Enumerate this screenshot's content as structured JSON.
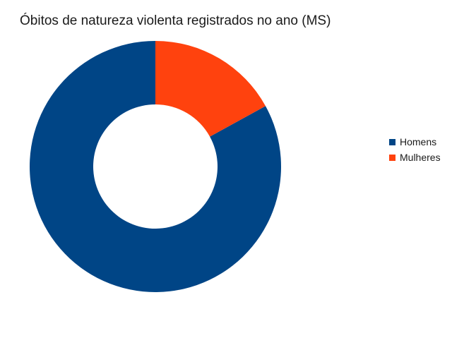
{
  "chart_data": {
    "type": "pie",
    "variant": "donut",
    "title": "Óbitos de natureza violenta registrados no ano (MS)",
    "categories": [
      "Homens",
      "Mulheres"
    ],
    "values": [
      83,
      17
    ],
    "colors": [
      "#004586",
      "#ff420e"
    ],
    "legend_position": "right",
    "show_values": false
  }
}
